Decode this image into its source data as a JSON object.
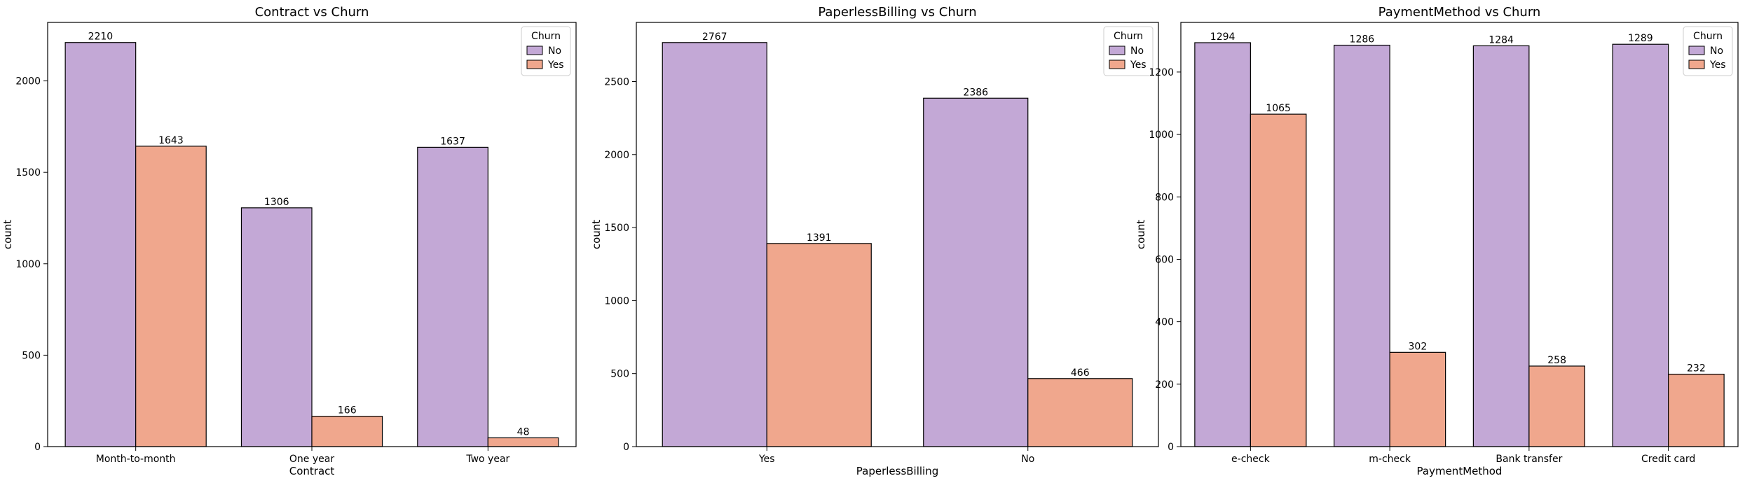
{
  "chart_data": [
    {
      "type": "bar",
      "title": "Contract vs Churn",
      "xlabel": "Contract",
      "ylabel": "count",
      "categories": [
        "Month-to-month",
        "One year",
        "Two year"
      ],
      "series": [
        {
          "name": "No",
          "values": [
            2210,
            1306,
            1637
          ]
        },
        {
          "name": "Yes",
          "values": [
            1643,
            166,
            48
          ]
        }
      ],
      "ylim": [
        0,
        2320
      ],
      "yticks": [
        0,
        500,
        1000,
        1500,
        2000
      ],
      "legend": {
        "title": "Churn",
        "placement": "top-right"
      }
    },
    {
      "type": "bar",
      "title": "PaperlessBilling vs Churn",
      "xlabel": "PaperlessBilling",
      "ylabel": "count",
      "categories": [
        "Yes",
        "No"
      ],
      "series": [
        {
          "name": "No",
          "values": [
            2767,
            2386
          ]
        },
        {
          "name": "Yes",
          "values": [
            1391,
            466
          ]
        }
      ],
      "ylim": [
        0,
        2905
      ],
      "yticks": [
        0,
        500,
        1000,
        1500,
        2000,
        2500
      ],
      "legend": {
        "title": "Churn",
        "placement": "top-right"
      }
    },
    {
      "type": "bar",
      "title": "PaymentMethod vs Churn",
      "xlabel": "PaymentMethod",
      "ylabel": "count",
      "categories": [
        "e-check",
        "m-check",
        "Bank transfer",
        "Credit card"
      ],
      "series": [
        {
          "name": "No",
          "values": [
            1294,
            1286,
            1284,
            1289
          ]
        },
        {
          "name": "Yes",
          "values": [
            1065,
            302,
            258,
            232
          ]
        }
      ],
      "ylim": [
        0,
        1359
      ],
      "yticks": [
        0,
        200,
        400,
        600,
        800,
        1000,
        1200
      ],
      "legend": {
        "title": "Churn",
        "placement": "top-right"
      }
    }
  ],
  "colors": {
    "No": "#c3a8d6",
    "Yes": "#f0a78d",
    "edge": "#000000"
  }
}
